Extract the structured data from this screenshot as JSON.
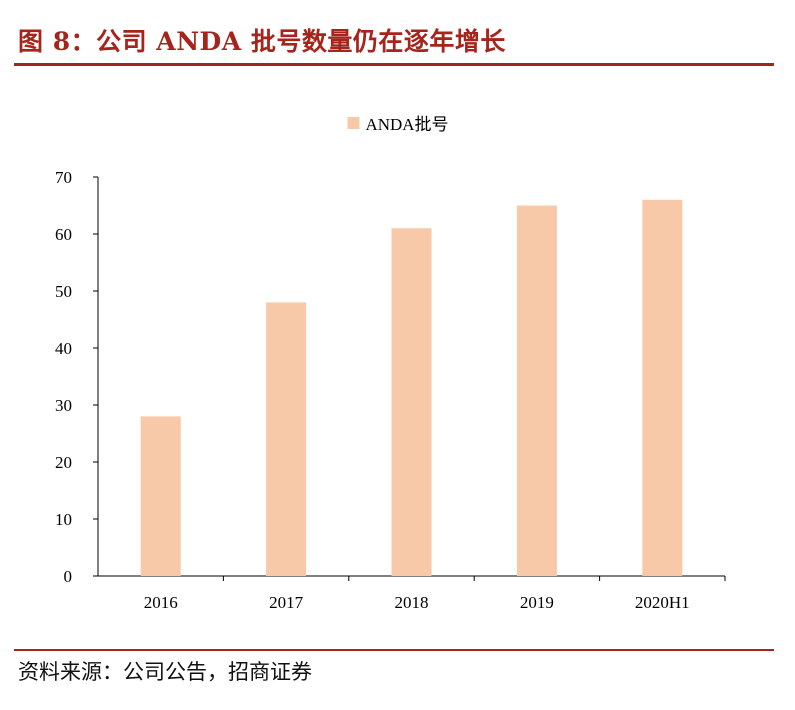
{
  "header": {
    "title": "图 8：公司 ANDA 批号数量仍在逐年增长"
  },
  "footer": {
    "source": "资料来源：公司公告，招商证券"
  },
  "colors": {
    "accent": "#a5241b",
    "bar": "#f8c9a9",
    "axis": "#000000"
  },
  "chart_data": {
    "type": "bar",
    "title": "",
    "xlabel": "",
    "ylabel": "",
    "categories": [
      "2016",
      "2017",
      "2018",
      "2019",
      "2020H1"
    ],
    "series": [
      {
        "name": "ANDA批号",
        "values": [
          28,
          48,
          61,
          65,
          66
        ]
      }
    ],
    "ylim": [
      0,
      70
    ],
    "yticks": [
      0,
      10,
      20,
      30,
      40,
      50,
      60,
      70
    ],
    "legend_position": "top-center",
    "grid": false
  }
}
